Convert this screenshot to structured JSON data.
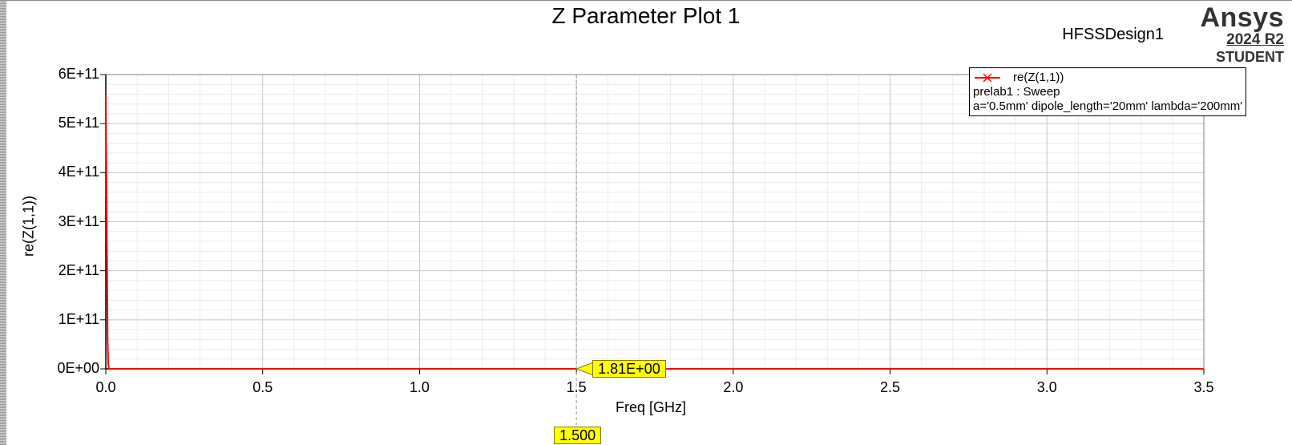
{
  "chart_data": {
    "type": "line",
    "title": "Z Parameter Plot 1",
    "xlabel": "Freq [GHz]",
    "ylabel": "re(Z(1,1))",
    "xlim": [
      0,
      3.5
    ],
    "ylim": [
      0,
      600000000000
    ],
    "x_ticks": [
      "0.0",
      "0.5",
      "1.0",
      "1.5",
      "2.0",
      "2.5",
      "3.0",
      "3.5"
    ],
    "y_ticks": [
      "0E+00",
      "1E+11",
      "2E+11",
      "3E+11",
      "4E+11",
      "5E+11",
      "6E+11"
    ],
    "grid": true,
    "legend_position": "top-right",
    "series": [
      {
        "name": "re(Z(1,1))",
        "color": "#ff0000",
        "x": [
          0.0,
          0.002,
          0.004,
          0.006,
          0.008,
          0.01,
          0.5,
          1.0,
          1.5,
          2.0,
          2.5,
          3.0,
          3.5
        ],
        "y": [
          560000000000,
          380000000000,
          200000000000,
          60000000000,
          10000000000,
          1.81,
          1.81,
          1.81,
          1.81,
          1.81,
          1.81,
          1.81,
          1.81
        ]
      }
    ],
    "marker": {
      "x": 1.5,
      "x_label": "1.500",
      "value_label": "1.81E+00"
    }
  },
  "header": {
    "design_name": "HFSSDesign1",
    "brand_name": "Ansys",
    "brand_version": "2024 R2",
    "brand_edition": "STUDENT"
  },
  "legend": {
    "line1": "re(Z(1,1))",
    "line2": "prelab1 : Sweep",
    "line3": "a='0.5mm' dipole_length='20mm' lambda='200mm'"
  }
}
